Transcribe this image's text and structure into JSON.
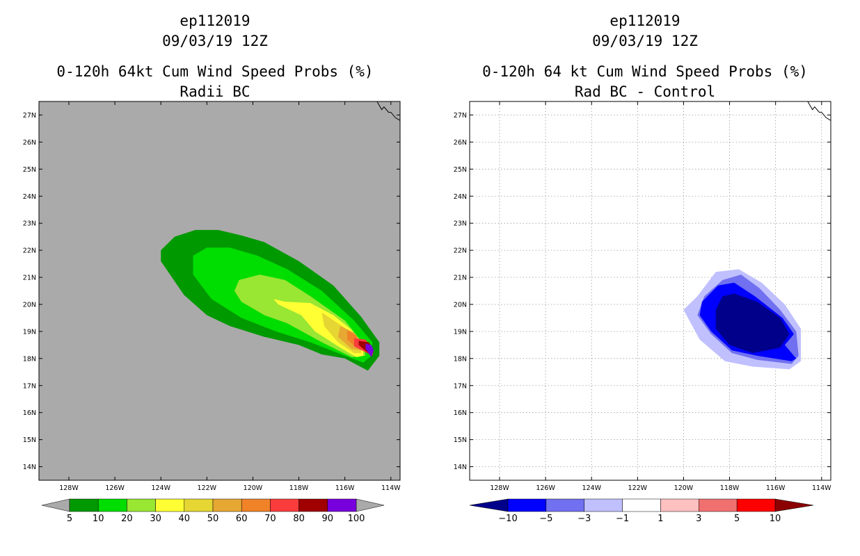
{
  "chart_data": [
    {
      "type": "heatmap",
      "panel": "left",
      "title_lines": [
        "ep112019",
        "09/03/19 12Z",
        "0-120h 64kt Cum Wind Speed Probs (%)",
        "Radii BC"
      ],
      "x_ticks": [
        "128W",
        "126W",
        "124W",
        "122W",
        "120W",
        "118W",
        "116W",
        "114W"
      ],
      "y_ticks": [
        "27N",
        "26N",
        "25N",
        "24N",
        "23N",
        "22N",
        "21N",
        "20N",
        "19N",
        "18N",
        "17N",
        "16N",
        "15N",
        "14N"
      ],
      "xlim": [
        -129.3,
        -113.6
      ],
      "ylim": [
        13.5,
        27.5
      ],
      "background_color": "#aaaaaa",
      "grid": false,
      "colorbar": {
        "labels": [
          "5",
          "10",
          "20",
          "30",
          "40",
          "50",
          "60",
          "70",
          "80",
          "90",
          "100"
        ],
        "colors": [
          "#009900",
          "#00dd00",
          "#99e633",
          "#ffff33",
          "#e6d633",
          "#e6a833",
          "#f08228",
          "#fa3c3c",
          "#a00000",
          "#7800dc"
        ]
      },
      "contours": [
        {
          "level": 5,
          "color": "#009900",
          "points": [
            [
              -124,
              22
            ],
            [
              -123.4,
              22.5
            ],
            [
              -122.5,
              22.75
            ],
            [
              -121.5,
              22.75
            ],
            [
              -120.5,
              22.55
            ],
            [
              -119.5,
              22.3
            ],
            [
              -118,
              21.6
            ],
            [
              -116.5,
              20.7
            ],
            [
              -115.3,
              19.55
            ],
            [
              -114.5,
              18.6
            ],
            [
              -114.5,
              18.1
            ],
            [
              -115,
              17.55
            ],
            [
              -116,
              18
            ],
            [
              -117,
              18.15
            ],
            [
              -118,
              18.5
            ],
            [
              -119.5,
              18.8
            ],
            [
              -121,
              19.2
            ],
            [
              -122,
              19.6
            ],
            [
              -123,
              20.35
            ],
            [
              -123.6,
              21.1
            ],
            [
              -124,
              21.6
            ]
          ]
        },
        {
          "level": 10,
          "color": "#00dd00",
          "points": [
            [
              -122.6,
              21.8
            ],
            [
              -122,
              22.1
            ],
            [
              -121,
              22.1
            ],
            [
              -119.8,
              21.8
            ],
            [
              -118.5,
              21.3
            ],
            [
              -117,
              20.5
            ],
            [
              -115.6,
              19.4
            ],
            [
              -114.8,
              18.6
            ],
            [
              -114.85,
              18.1
            ],
            [
              -115.2,
              17.85
            ],
            [
              -116,
              18.1
            ],
            [
              -117.5,
              18.6
            ],
            [
              -119,
              19
            ],
            [
              -120.5,
              19.5
            ],
            [
              -121.8,
              20.2
            ],
            [
              -122.6,
              21.1
            ]
          ]
        },
        {
          "level": 20,
          "color": "#99e633",
          "points": [
            [
              -120.6,
              20.9
            ],
            [
              -119.7,
              21.1
            ],
            [
              -118.6,
              20.9
            ],
            [
              -117.5,
              20.3
            ],
            [
              -116,
              19.4
            ],
            [
              -115.2,
              18.55
            ],
            [
              -115.1,
              18.1
            ],
            [
              -115.7,
              18.05
            ],
            [
              -117,
              18.6
            ],
            [
              -118.5,
              19.3
            ],
            [
              -119.5,
              19.6
            ],
            [
              -120.5,
              20.1
            ],
            [
              -120.8,
              20.5
            ]
          ]
        },
        {
          "level": 30,
          "color": "#ffff33",
          "points": [
            [
              -119.1,
              20.2
            ],
            [
              -118.6,
              20.1
            ],
            [
              -117.5,
              20.05
            ],
            [
              -116.5,
              19.6
            ],
            [
              -115.7,
              19.05
            ],
            [
              -115.2,
              18.5
            ],
            [
              -115.2,
              18.1
            ],
            [
              -115.5,
              18.05
            ],
            [
              -116.2,
              18.4
            ],
            [
              -117.3,
              19
            ],
            [
              -117.9,
              19.6
            ],
            [
              -118.9,
              20
            ]
          ]
        },
        {
          "level": 40,
          "color": "#e6d633",
          "points": [
            [
              -117,
              19.7
            ],
            [
              -116.3,
              19.3
            ],
            [
              -115.6,
              18.9
            ],
            [
              -115.3,
              18.5
            ],
            [
              -115.3,
              18.2
            ],
            [
              -115.6,
              18.2
            ],
            [
              -116.3,
              18.6
            ],
            [
              -116.9,
              19.2
            ]
          ]
        },
        {
          "level": 50,
          "color": "#e6a833",
          "points": [
            [
              -116.2,
              19.2
            ],
            [
              -115.6,
              18.95
            ],
            [
              -115.3,
              18.6
            ],
            [
              -115.3,
              18.3
            ],
            [
              -115.7,
              18.35
            ],
            [
              -116.3,
              18.8
            ]
          ]
        },
        {
          "level": 60,
          "color": "#f08228",
          "points": [
            [
              -115.9,
              19.05
            ],
            [
              -115.5,
              18.85
            ],
            [
              -115.35,
              18.5
            ],
            [
              -115.5,
              18.4
            ],
            [
              -115.9,
              18.7
            ]
          ]
        },
        {
          "level": 70,
          "color": "#fa3c3c",
          "points": [
            [
              -115.6,
              18.75
            ],
            [
              -115.1,
              18.7
            ],
            [
              -114.75,
              18.3
            ],
            [
              -114.8,
              18.1
            ],
            [
              -115.6,
              18.45
            ]
          ]
        },
        {
          "level": 80,
          "color": "#a00000",
          "points": [
            [
              -115.4,
              18.65
            ],
            [
              -114.95,
              18.6
            ],
            [
              -114.75,
              18.3
            ],
            [
              -114.85,
              18.1
            ],
            [
              -115.4,
              18.5
            ]
          ]
        },
        {
          "level": 90,
          "color": "#7800dc",
          "points": [
            [
              -115.1,
              18.55
            ],
            [
              -114.85,
              18.5
            ],
            [
              -114.75,
              18.3
            ],
            [
              -114.85,
              18.05
            ],
            [
              -115.1,
              18.35
            ]
          ]
        }
      ],
      "coastline": [
        [
          -114.6,
          27.5
        ],
        [
          -114.4,
          27.2
        ],
        [
          -114.3,
          27.3
        ],
        [
          -114.1,
          27.1
        ],
        [
          -114,
          27.1
        ],
        [
          -113.8,
          26.9
        ],
        [
          -113.6,
          26.8
        ]
      ]
    },
    {
      "type": "heatmap",
      "panel": "right",
      "title_lines": [
        "ep112019",
        "09/03/19 12Z",
        "0-120h 64 kt Cum Wind Speed Probs (%)",
        "Rad BC - Control"
      ],
      "x_ticks": [
        "128W",
        "126W",
        "124W",
        "122W",
        "120W",
        "118W",
        "116W",
        "114W"
      ],
      "y_ticks": [
        "27N",
        "26N",
        "25N",
        "24N",
        "23N",
        "22N",
        "21N",
        "20N",
        "19N",
        "18N",
        "17N",
        "16N",
        "15N",
        "14N"
      ],
      "xlim": [
        -129.3,
        -113.6
      ],
      "ylim": [
        13.5,
        27.5
      ],
      "background_color": "#ffffff",
      "grid": true,
      "colorbar": {
        "labels": [
          "-10",
          "-5",
          "-3",
          "-1",
          "1",
          "3",
          "5",
          "10"
        ],
        "colors": [
          "#00008b",
          "#0000ff",
          "#7070f0",
          "#c0c0ff",
          "#ffffff",
          "#ffc0c0",
          "#f07070",
          "#ff0000",
          "#8b0000"
        ]
      },
      "contours": [
        {
          "level": -1,
          "color": "#c0c0ff",
          "points": [
            [
              -119.4,
              20.3
            ],
            [
              -118.6,
              21.2
            ],
            [
              -117.6,
              21.3
            ],
            [
              -116.6,
              20.8
            ],
            [
              -115.6,
              20
            ],
            [
              -114.9,
              19.1
            ],
            [
              -114.9,
              17.9
            ],
            [
              -115.4,
              17.6
            ],
            [
              -117,
              17.7
            ],
            [
              -118.2,
              17.9
            ],
            [
              -119.3,
              18.7
            ],
            [
              -120,
              19.8
            ]
          ]
        },
        {
          "level": -3,
          "color": "#7070f0",
          "points": [
            [
              -119.1,
              20.3
            ],
            [
              -118.3,
              20.9
            ],
            [
              -117.5,
              21.1
            ],
            [
              -116.7,
              20.6
            ],
            [
              -115.8,
              19.8
            ],
            [
              -115.1,
              19
            ],
            [
              -115,
              18.1
            ],
            [
              -115.3,
              17.8
            ],
            [
              -116.8,
              17.95
            ],
            [
              -117.9,
              18.2
            ],
            [
              -118.8,
              18.9
            ],
            [
              -119.4,
              19.6
            ]
          ]
        },
        {
          "level": -5,
          "color": "#0000ff",
          "points": [
            [
              -119.2,
              20.1
            ],
            [
              -118.5,
              20.7
            ],
            [
              -117.8,
              20.8
            ],
            [
              -116.9,
              20.3
            ],
            [
              -115.7,
              19.5
            ],
            [
              -115.2,
              18.9
            ],
            [
              -115.6,
              18.5
            ],
            [
              -115.1,
              18
            ],
            [
              -115.3,
              17.9
            ],
            [
              -116.8,
              18.1
            ],
            [
              -117.9,
              18.3
            ],
            [
              -118.8,
              19
            ],
            [
              -119.3,
              19.6
            ]
          ]
        },
        {
          "level": -10,
          "color": "#00008b",
          "points": [
            [
              -118.6,
              19.8
            ],
            [
              -118.3,
              20.3
            ],
            [
              -117.8,
              20.4
            ],
            [
              -116.8,
              20.1
            ],
            [
              -115.8,
              19.5
            ],
            [
              -115.4,
              18.9
            ],
            [
              -115.8,
              18.4
            ],
            [
              -117,
              18.2
            ],
            [
              -118,
              18.5
            ],
            [
              -118.6,
              19.1
            ]
          ]
        }
      ],
      "coastline": [
        [
          -114.6,
          27.5
        ],
        [
          -114.4,
          27.2
        ],
        [
          -114.3,
          27.3
        ],
        [
          -114.1,
          27.1
        ],
        [
          -114,
          27.1
        ],
        [
          -113.8,
          26.9
        ],
        [
          -113.6,
          26.8
        ]
      ]
    }
  ]
}
